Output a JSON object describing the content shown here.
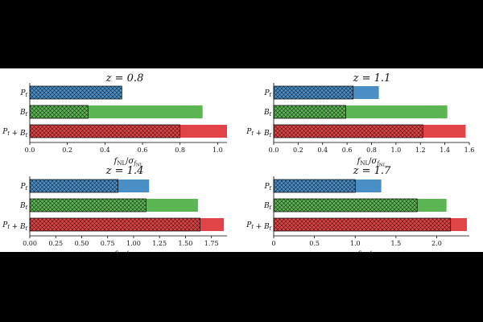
{
  "chart_data": [
    {
      "type": "bar",
      "orientation": "horizontal",
      "title": "z = 0.8",
      "xlabel": "f_NL/σ_{f_NL}",
      "categories": [
        "P_f",
        "B_f",
        "P_f + B_f"
      ],
      "series": [
        {
          "values": [
            0.49,
            0.92,
            1.05
          ],
          "pattern": "solid"
        },
        {
          "values": [
            0.49,
            0.31,
            0.8
          ],
          "pattern": "cross-hatched"
        }
      ],
      "xlim": [
        0,
        1.05
      ],
      "xticks": [
        "0.0",
        "0.2",
        "0.4",
        "0.6",
        "0.8",
        "1.0"
      ],
      "grid": false
    },
    {
      "type": "bar",
      "orientation": "horizontal",
      "title": "z = 1.1",
      "xlabel": "f_NL/σ_{f_NL}",
      "categories": [
        "P_f",
        "B_f",
        "P_f + B_f"
      ],
      "series": [
        {
          "values": [
            0.86,
            1.42,
            1.57
          ],
          "pattern": "solid"
        },
        {
          "values": [
            0.65,
            0.59,
            1.22
          ],
          "pattern": "cross-hatched"
        }
      ],
      "xlim": [
        0,
        1.6
      ],
      "xticks": [
        "0.0",
        "0.2",
        "0.4",
        "0.6",
        "0.8",
        "1.0",
        "1.2",
        "1.4",
        "1.6"
      ],
      "grid": false
    },
    {
      "type": "bar",
      "orientation": "horizontal",
      "title": "z = 1.4",
      "xlabel": "f_NL/σ_{f_NL}",
      "categories": [
        "P_f",
        "B_f",
        "P_f + B_f"
      ],
      "series": [
        {
          "values": [
            1.15,
            1.62,
            1.87
          ],
          "pattern": "solid"
        },
        {
          "values": [
            0.85,
            1.12,
            1.64
          ],
          "pattern": "cross-hatched"
        }
      ],
      "xlim": [
        0,
        1.9
      ],
      "xticks": [
        "0.00",
        "0.25",
        "0.50",
        "0.75",
        "1.00",
        "1.25",
        "1.50",
        "1.75"
      ],
      "grid": false
    },
    {
      "type": "bar",
      "orientation": "horizontal",
      "title": "z = 1.7",
      "xlabel": "f_NL/σ_{f_NL}",
      "categories": [
        "P_f",
        "B_f",
        "P_f + B_f"
      ],
      "series": [
        {
          "values": [
            1.32,
            2.12,
            2.37
          ],
          "pattern": "solid"
        },
        {
          "values": [
            1.0,
            1.76,
            2.17
          ],
          "pattern": "cross-hatched"
        }
      ],
      "xlim": [
        0,
        2.4
      ],
      "xticks": [
        "0",
        "0.5",
        "1.0",
        "1.5",
        "2.0"
      ],
      "grid": false
    }
  ],
  "colors": {
    "P_f": "#4a8ec6",
    "B_f": "#5bb552",
    "P_f + B_f": "#e24346"
  }
}
